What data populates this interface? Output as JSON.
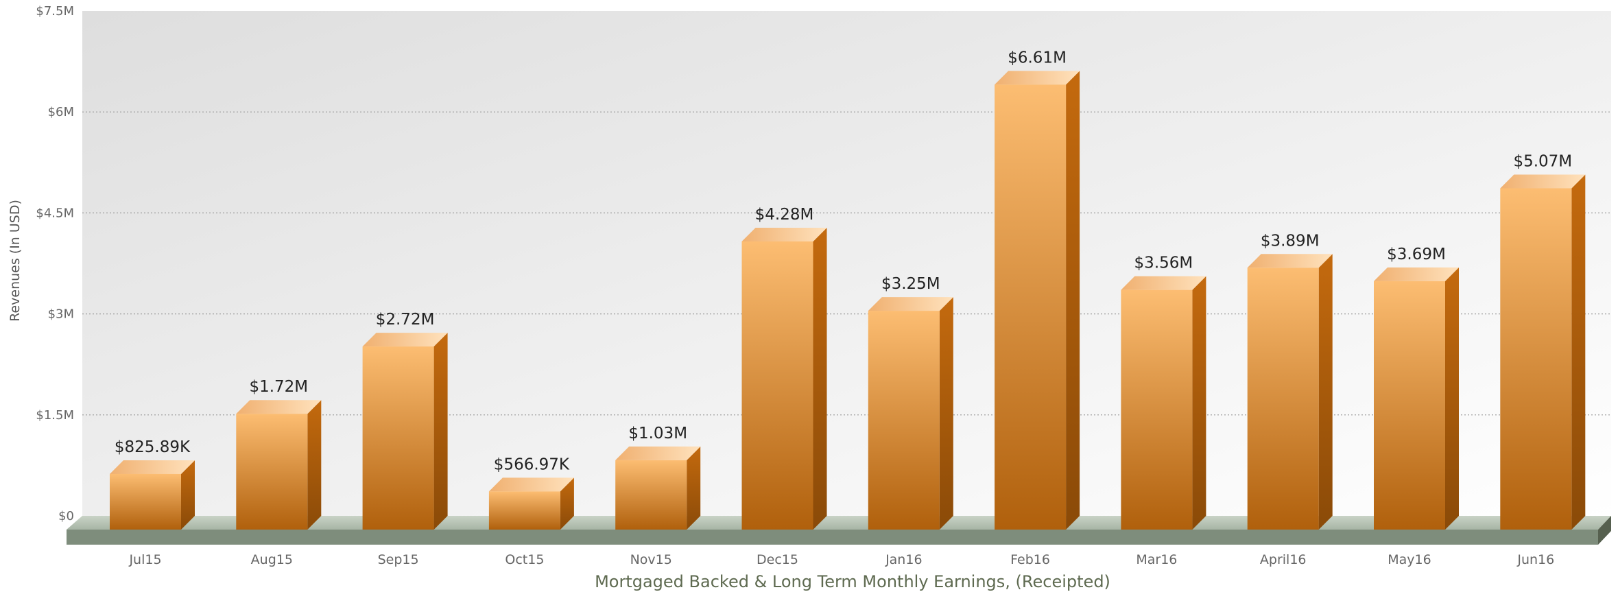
{
  "chart_data": {
    "type": "bar",
    "style": "3d-column",
    "title": "",
    "xlabel": "Mortgaged Backed & Long Term Monthly Earnings, (Receipted)",
    "ylabel": "Revenues (In USD)",
    "ylim": [
      0,
      7500000
    ],
    "yticks": [
      {
        "value": 0,
        "label": "$0"
      },
      {
        "value": 1500000,
        "label": "$1.5M"
      },
      {
        "value": 3000000,
        "label": "$3M"
      },
      {
        "value": 4500000,
        "label": "$4.5M"
      },
      {
        "value": 6000000,
        "label": "$6M"
      },
      {
        "value": 7500000,
        "label": "$7.5M"
      }
    ],
    "grid": true,
    "legend": "none",
    "categories": [
      "Jul15",
      "Aug15",
      "Sep15",
      "Oct15",
      "Nov15",
      "Dec15",
      "Jan16",
      "Feb16",
      "Mar16",
      "April16",
      "May16",
      "Jun16"
    ],
    "values": [
      825890,
      1720000,
      2720000,
      566970,
      1030000,
      4280000,
      3250000,
      6610000,
      3560000,
      3890000,
      3690000,
      5070000
    ],
    "value_labels": [
      "$825.89K",
      "$1.72M",
      "$2.72M",
      "$566.97K",
      "$1.03M",
      "$4.28M",
      "$3.25M",
      "$6.61M",
      "$3.56M",
      "$3.89M",
      "$3.69M",
      "$5.07M"
    ],
    "colors": {
      "bar_light": "#fcbd72",
      "bar_dark": "#b0600c",
      "bar_side": "#8a4a08",
      "bar_top": "#f0b070",
      "floor": "#a7b5a5",
      "plot_bg_dark": "#dedede",
      "plot_bg_light": "#ffffff",
      "grid": "#999999",
      "tick_text": "#666666",
      "axis_title": "#555555",
      "xlabel_text": "#5e6a50",
      "value_text": "#222222"
    }
  }
}
